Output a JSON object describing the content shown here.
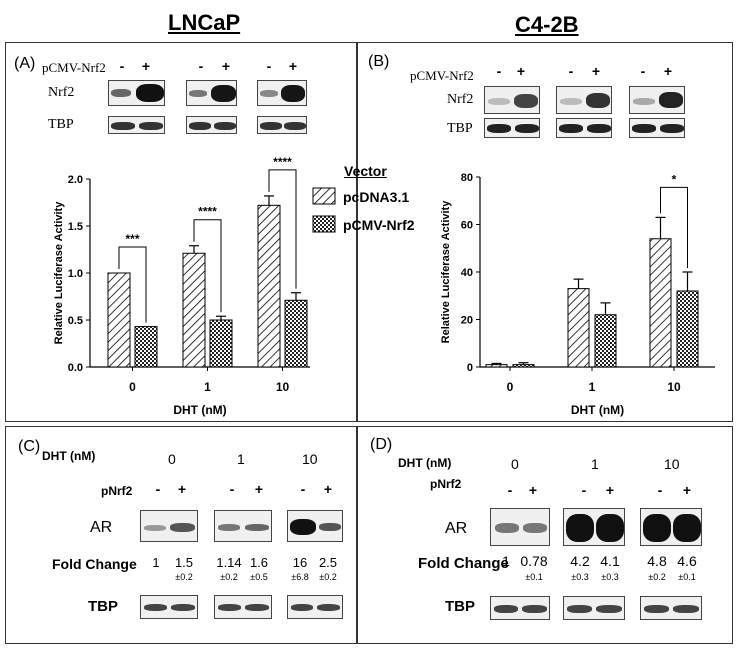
{
  "titles": {
    "left": "LNCaP",
    "right": "C4-2B"
  },
  "panelA": {
    "label": "(A)",
    "construct": "pCMV-Nrf2",
    "signs": [
      "-",
      "+",
      "-",
      "+",
      "-",
      "+"
    ],
    "rows": [
      "Nrf2",
      "TBP"
    ]
  },
  "panelB": {
    "label": "(B)",
    "construct": "pCMV-Nrf2",
    "signs": [
      "-",
      "+",
      "-",
      "+",
      "-",
      "+"
    ],
    "rows": [
      "Nrf2",
      "TBP"
    ]
  },
  "legend": {
    "title": "Vector",
    "items": [
      "pcDNA3.1",
      "pCMV-Nrf2"
    ]
  },
  "panelC": {
    "label": "(C)",
    "dht_label": "DHT (nM)",
    "dht_values": [
      "0",
      "1",
      "10"
    ],
    "pnrf2_label": "pNrf2",
    "signs": [
      "-",
      "+",
      "-",
      "+",
      "-",
      "+"
    ],
    "ar_label": "AR",
    "fold_label": "Fold Change",
    "fold": [
      "1",
      "1.5",
      "1.14",
      "1.6",
      "16",
      "2.5"
    ],
    "fold_err": [
      "",
      "±0.2",
      "±0.2",
      "±0.5",
      "±6.8",
      "±0.2"
    ],
    "tbp_label": "TBP"
  },
  "panelD": {
    "label": "(D)",
    "dht_label": "DHT (nM)",
    "dht_values": [
      "0",
      "1",
      "10"
    ],
    "pnrf2_label": "pNrf2",
    "signs": [
      "-",
      "+",
      "-",
      "+",
      "-",
      "+"
    ],
    "ar_label": "AR",
    "fold_label": "Fold Change",
    "fold": [
      "1",
      "0.78",
      "4.2",
      "4.1",
      "4.8",
      "4.6"
    ],
    "fold_err": [
      "",
      "±0.1",
      "±0.3",
      "±0.3",
      "±0.2",
      "±0.1"
    ],
    "tbp_label": "TBP"
  },
  "chart_data": [
    {
      "type": "bar",
      "xlabel": "DHT (nM)",
      "ylabel": "Relative Luciferase Activity",
      "categories": [
        "0",
        "1",
        "10"
      ],
      "ylim": [
        0,
        2.0
      ],
      "yticks": [
        "0.0",
        "0.5",
        "1.0",
        "1.5",
        "2.0"
      ],
      "series": [
        {
          "name": "pcDNA3.1",
          "values": [
            1.0,
            1.21,
            1.72
          ],
          "errors": [
            0,
            0.08,
            0.1
          ]
        },
        {
          "name": "pCMV-Nrf2",
          "values": [
            0.43,
            0.5,
            0.71
          ],
          "errors": [
            0,
            0.04,
            0.08
          ]
        }
      ],
      "significance": [
        "***",
        "****",
        "****"
      ]
    },
    {
      "type": "bar",
      "xlabel": "DHT (nM)",
      "ylabel": "Relative Luciferase Activity",
      "categories": [
        "0",
        "1",
        "10"
      ],
      "ylim": [
        0,
        80
      ],
      "yticks": [
        "0",
        "20",
        "40",
        "60",
        "80"
      ],
      "series": [
        {
          "name": "pcDNA3.1",
          "values": [
            1,
            33,
            54
          ],
          "errors": [
            0.5,
            4,
            9
          ]
        },
        {
          "name": "pCMV-Nrf2",
          "values": [
            1,
            22,
            32
          ],
          "errors": [
            0.8,
            5,
            8
          ]
        }
      ],
      "significance": [
        "",
        "",
        "*"
      ]
    }
  ]
}
